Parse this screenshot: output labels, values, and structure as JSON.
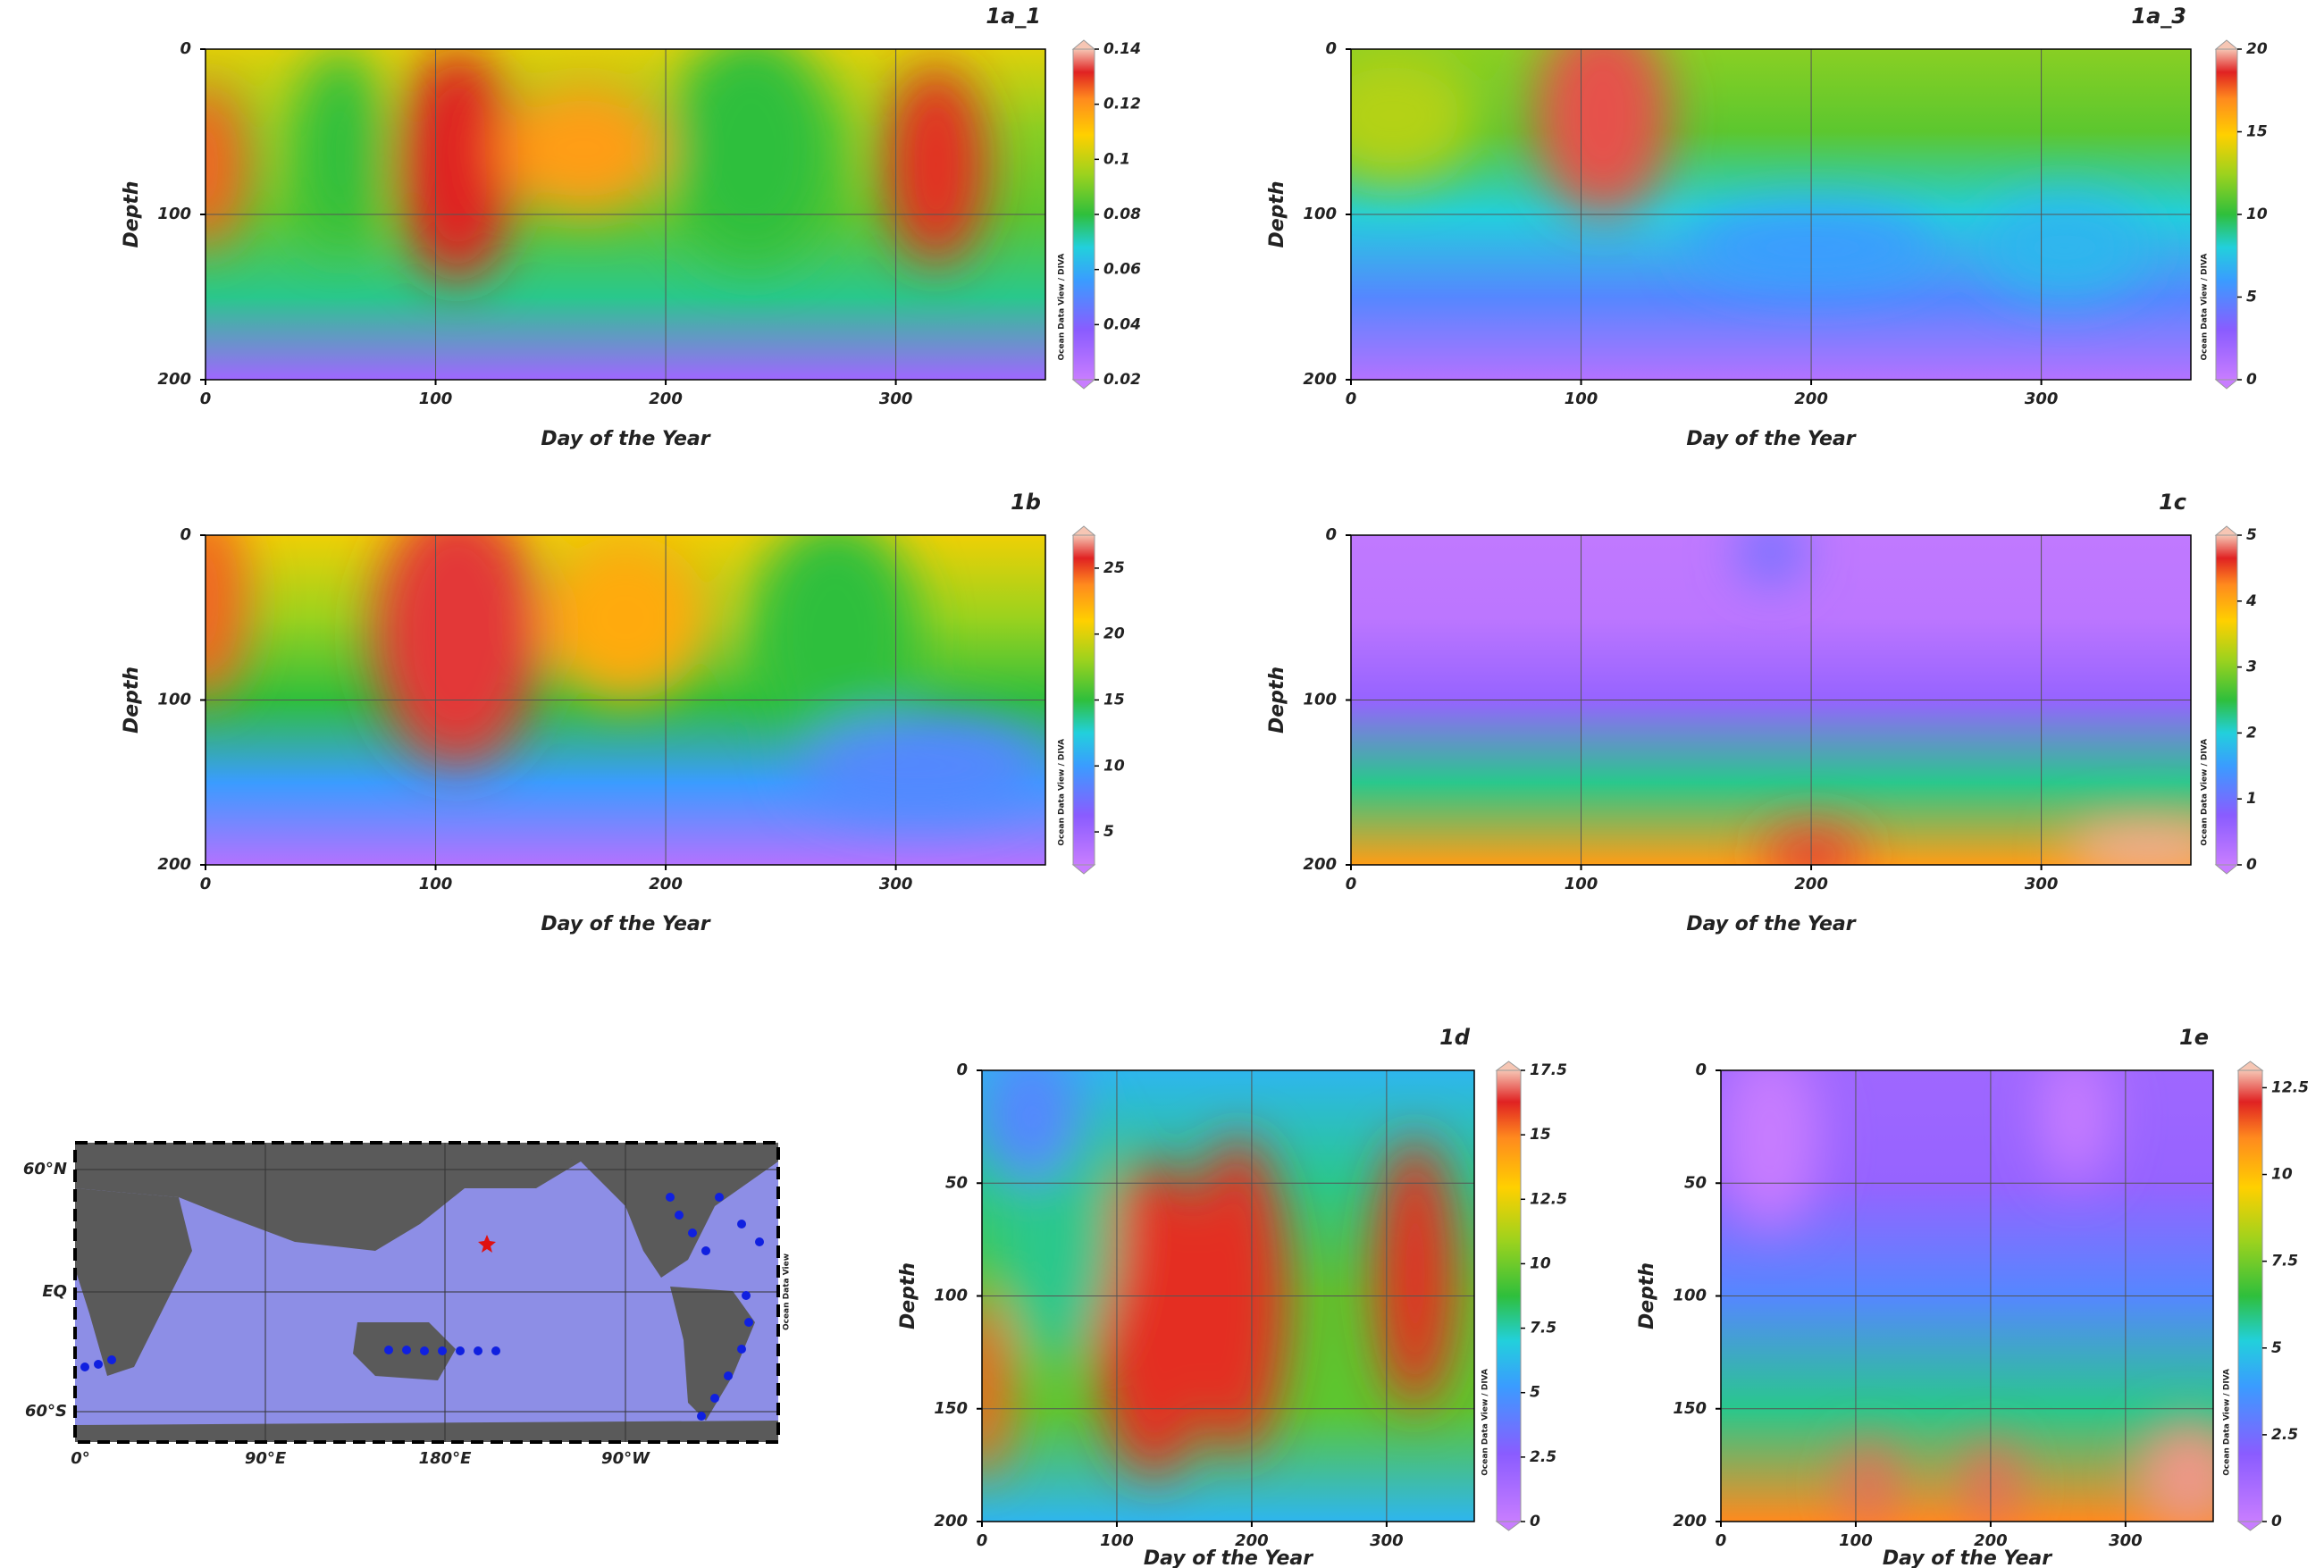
{
  "chart_data": [
    {
      "type": "contour",
      "title": "1a_1",
      "xlabel": "Day of the Year",
      "ylabel": "Depth",
      "xlim": [
        0,
        365
      ],
      "xticks": [
        0,
        100,
        200,
        300
      ],
      "ylim": [
        0,
        200
      ],
      "yticks": [
        0,
        100,
        200
      ],
      "y_inverted": true,
      "grid": true,
      "colorbar": {
        "lim": [
          0.02,
          0.14
        ],
        "ticks": [
          0.02,
          0.04,
          0.06,
          0.08,
          0.1,
          0.12,
          0.14
        ],
        "label": "Ocean Data View / DIVA"
      }
    },
    {
      "type": "contour",
      "title": "1a_3",
      "xlabel": "Day of the Year",
      "ylabel": "Depth",
      "xlim": [
        0,
        365
      ],
      "xticks": [
        0,
        100,
        200,
        300
      ],
      "ylim": [
        0,
        200
      ],
      "yticks": [
        0,
        100,
        200
      ],
      "y_inverted": true,
      "grid": true,
      "colorbar": {
        "lim": [
          0,
          20
        ],
        "ticks": [
          0,
          5,
          10,
          15,
          20
        ],
        "label": "Ocean Data View / DIVA"
      }
    },
    {
      "type": "contour",
      "title": "1b",
      "xlabel": "Day of the Year",
      "ylabel": "Depth",
      "xlim": [
        0,
        365
      ],
      "xticks": [
        0,
        100,
        200,
        300
      ],
      "ylim": [
        0,
        200
      ],
      "yticks": [
        0,
        100,
        200
      ],
      "y_inverted": true,
      "grid": true,
      "colorbar": {
        "lim": [
          2.5,
          27.5
        ],
        "ticks": [
          5,
          10,
          15,
          20,
          25
        ],
        "label": "Ocean Data View / DIVA"
      }
    },
    {
      "type": "contour",
      "title": "1c",
      "xlabel": "Day of the Year",
      "ylabel": "Depth",
      "xlim": [
        0,
        365
      ],
      "xticks": [
        0,
        100,
        200,
        300
      ],
      "ylim": [
        0,
        200
      ],
      "yticks": [
        0,
        100,
        200
      ],
      "y_inverted": true,
      "grid": true,
      "colorbar": {
        "lim": [
          0,
          5
        ],
        "ticks": [
          0,
          1,
          2,
          3,
          4,
          5
        ],
        "label": "Ocean Data View / DIVA"
      }
    },
    {
      "type": "contour",
      "title": "1d",
      "xlabel": "Day of the Year",
      "ylabel": "Depth",
      "xlim": [
        0,
        365
      ],
      "xticks": [
        0,
        100,
        200,
        300
      ],
      "ylim": [
        0,
        200
      ],
      "yticks": [
        0,
        50,
        100,
        150,
        200
      ],
      "y_inverted": true,
      "grid": true,
      "colorbar": {
        "lim": [
          0,
          17.5
        ],
        "ticks": [
          0,
          2.5,
          5,
          7.5,
          10,
          12.5,
          15,
          17.5
        ],
        "label": "Ocean Data View / DIVA"
      }
    },
    {
      "type": "contour",
      "title": "1e",
      "xlabel": "Day of the Year",
      "ylabel": "Depth",
      "xlim": [
        0,
        365
      ],
      "xticks": [
        0,
        100,
        200,
        300
      ],
      "ylim": [
        0,
        200
      ],
      "yticks": [
        0,
        50,
        100,
        150,
        200
      ],
      "y_inverted": true,
      "grid": true,
      "colorbar": {
        "lim": [
          0,
          13
        ],
        "ticks": [
          0,
          2.5,
          5,
          7.5,
          10,
          12.5
        ],
        "label": "Ocean Data View / DIVA"
      }
    }
  ],
  "map": {
    "lat_labels": [
      "60°N",
      "EQ",
      "60°S"
    ],
    "lon_labels": [
      "0°",
      "90°E",
      "180°E",
      "90°W"
    ],
    "credit": "Ocean Data View"
  }
}
